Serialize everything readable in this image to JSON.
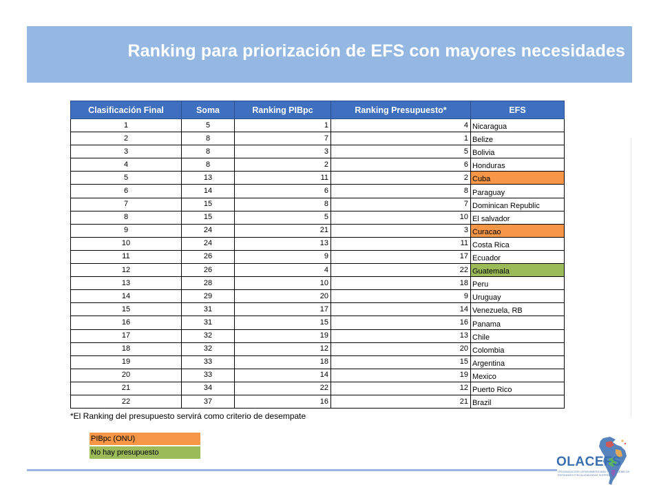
{
  "title": "Ranking para priorización de EFS con mayores necesidades",
  "table": {
    "headers": [
      "Clasificación Final",
      "Soma",
      "Ranking PIBpc",
      "Ranking Presupuesto*",
      "EFS"
    ],
    "rows": [
      {
        "c": "1",
        "s": "5",
        "p": "1",
        "b": "4",
        "efs": "Nicaragua",
        "hl": ""
      },
      {
        "c": "2",
        "s": "8",
        "p": "7",
        "b": "1",
        "efs": "Belize",
        "hl": ""
      },
      {
        "c": "3",
        "s": "8",
        "p": "3",
        "b": "5",
        "efs": "Bolivia",
        "hl": ""
      },
      {
        "c": "4",
        "s": "8",
        "p": "2",
        "b": "6",
        "efs": "Honduras",
        "hl": ""
      },
      {
        "c": "5",
        "s": "13",
        "p": "11",
        "b": "2",
        "efs": "Cuba",
        "hl": "orange"
      },
      {
        "c": "6",
        "s": "14",
        "p": "6",
        "b": "8",
        "efs": "Paraguay",
        "hl": ""
      },
      {
        "c": "7",
        "s": "15",
        "p": "8",
        "b": "7",
        "efs": "Dominican Republic",
        "hl": ""
      },
      {
        "c": "8",
        "s": "15",
        "p": "5",
        "b": "10",
        "efs": "El salvador",
        "hl": ""
      },
      {
        "c": "9",
        "s": "24",
        "p": "21",
        "b": "3",
        "efs": "Curacao",
        "hl": "orange"
      },
      {
        "c": "10",
        "s": "24",
        "p": "13",
        "b": "11",
        "efs": "Costa Rica",
        "hl": ""
      },
      {
        "c": "11",
        "s": "26",
        "p": "9",
        "b": "17",
        "efs": "Ecuador",
        "hl": ""
      },
      {
        "c": "12",
        "s": "26",
        "p": "4",
        "b": "22",
        "efs": "Guatemala",
        "hl": "green"
      },
      {
        "c": "13",
        "s": "28",
        "p": "10",
        "b": "18",
        "efs": "Peru",
        "hl": ""
      },
      {
        "c": "14",
        "s": "29",
        "p": "20",
        "b": "9",
        "efs": "Uruguay",
        "hl": ""
      },
      {
        "c": "15",
        "s": "31",
        "p": "17",
        "b": "14",
        "efs": "Venezuela, RB",
        "hl": ""
      },
      {
        "c": "16",
        "s": "31",
        "p": "15",
        "b": "16",
        "efs": "Panama",
        "hl": ""
      },
      {
        "c": "17",
        "s": "32",
        "p": "19",
        "b": "13",
        "efs": "Chile",
        "hl": ""
      },
      {
        "c": "18",
        "s": "32",
        "p": "12",
        "b": "20",
        "efs": "Colombia",
        "hl": ""
      },
      {
        "c": "19",
        "s": "33",
        "p": "18",
        "b": "15",
        "efs": "Argentina",
        "hl": ""
      },
      {
        "c": "20",
        "s": "33",
        "p": "14",
        "b": "19",
        "efs": "Mexico",
        "hl": ""
      },
      {
        "c": "21",
        "s": "34",
        "p": "22",
        "b": "12",
        "efs": "Puerto Rico",
        "hl": ""
      },
      {
        "c": "22",
        "s": "37",
        "p": "16",
        "b": "21",
        "efs": "Brazil",
        "hl": ""
      }
    ]
  },
  "footnote": "*El Ranking del presupuesto servirá como criterio de desempate",
  "legend": [
    {
      "label": "PIBpc (ONU)",
      "color": "#f79646"
    },
    {
      "label": "No hay presupuesto",
      "color": "#9bbb59"
    }
  ],
  "colors": {
    "title_bar": "#95b8e3",
    "header": "#3f6fbf",
    "orange": "#f79646",
    "green": "#9bbb59"
  },
  "logo": {
    "name": "OLACEFS",
    "subtitle": "ORGANIZACIÓN LATINOAMERICANA Y DEL CARIBE DE ENTIDADES FISCALIZADORAS SUPERIORES",
    "icon": "latin-america-map-icon"
  }
}
